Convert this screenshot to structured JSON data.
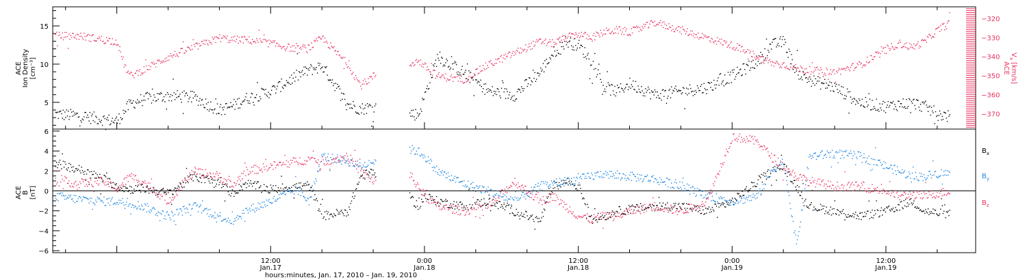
{
  "colors": {
    "black": "#000000",
    "pink": "#e8325f",
    "blue": "#1f86e0"
  },
  "chart_data": [
    {
      "type": "scatter",
      "title": "",
      "ylabel_left": [
        "ACE",
        "Ion Density",
        "[cm⁻³]"
      ],
      "ylabel_right": [
        "ACE",
        "V",
        "x",
        "[km/s]"
      ],
      "ylim_left": [
        1.5,
        17.5
      ],
      "ylim_right": [
        -378,
        -314
      ],
      "yticks_left": [
        5,
        10,
        15
      ],
      "yticks_right": [
        -370,
        -360,
        -350,
        -340,
        -330,
        -320
      ],
      "xlim_hours": [
        -5,
        67
      ],
      "grid": false,
      "series": [
        {
          "axis": "left",
          "color": "#000000",
          "x": [
            -4.8,
            -3.0,
            -1.0,
            0.0,
            0.6,
            1.0,
            2.0,
            4.0,
            6.0,
            8.0,
            9.0,
            10.0,
            12.0,
            14.0,
            15.0,
            16.0,
            18.0,
            19.0,
            20.0,
            22.0,
            23.5,
            24.0,
            25.0,
            27.0,
            29.0,
            31.0,
            33.0,
            34.0,
            35.0,
            36.0,
            37.0,
            38.0,
            39.0,
            40.0,
            42.0,
            44.0,
            46.0,
            48.0,
            50.0,
            51.0,
            52.0,
            53.0,
            54.0,
            56.0,
            58.0,
            60.0,
            61.0,
            62.0,
            63.0,
            64.0,
            65.0
          ],
          "y": [
            3.5,
            3.3,
            2.8,
            2.6,
            4.0,
            4.8,
            5.5,
            5.9,
            5.7,
            4.0,
            4.6,
            5.5,
            6.5,
            8.5,
            9.3,
            9.8,
            4.8,
            4.2,
            4.5,
            4.0,
            3.4,
            6.0,
            11.0,
            9.0,
            6.5,
            6.0,
            9.0,
            11.5,
            13.0,
            12.5,
            10.5,
            7.0,
            6.5,
            7.5,
            6.0,
            6.5,
            7.0,
            8.5,
            10.5,
            12.5,
            13.0,
            9.0,
            8.0,
            7.0,
            5.0,
            4.5,
            4.8,
            5.0,
            4.5,
            3.5,
            3.2
          ]
        },
        {
          "axis": "right",
          "color": "#e8325f",
          "x": [
            -4.8,
            -3.0,
            -1.0,
            0.0,
            0.6,
            1.0,
            2.0,
            4.0,
            6.0,
            8.0,
            9.0,
            10.0,
            12.0,
            14.0,
            15.0,
            16.0,
            18.0,
            19.0,
            20.0,
            22.0,
            23.5,
            24.0,
            25.0,
            27.0,
            29.0,
            31.0,
            33.0,
            34.0,
            35.0,
            36.0,
            37.0,
            38.0,
            39.0,
            40.0,
            42.0,
            44.0,
            46.0,
            48.0,
            50.0,
            51.0,
            52.0,
            53.0,
            54.0,
            56.0,
            58.0,
            60.0,
            61.0,
            62.0,
            63.0,
            64.0,
            65.0
          ],
          "y": [
            -329,
            -329,
            -331,
            -332,
            -345,
            -350,
            -347,
            -340,
            -335,
            -330,
            -331,
            -331,
            -333,
            -336,
            -335,
            -330,
            -344,
            -355,
            -350,
            -346,
            -342,
            -345,
            -350,
            -352,
            -344,
            -338,
            -332,
            -333,
            -330,
            -328,
            -330,
            -327,
            -326,
            -327,
            -322,
            -326,
            -330,
            -334,
            -340,
            -343,
            -344,
            -346,
            -347,
            -348,
            -344,
            -336,
            -333,
            -335,
            -332,
            -326,
            -322
          ]
        }
      ]
    },
    {
      "type": "scatter",
      "title": "",
      "ylabel_left": [
        "ACE",
        "B",
        "[nT]"
      ],
      "ylim": [
        -6.2,
        6.2
      ],
      "yticks": [
        -6,
        -4,
        -2,
        0,
        2,
        4,
        6
      ],
      "xlim_hours": [
        -5,
        67
      ],
      "zero_line": true,
      "grid": false,
      "legend_position": "right",
      "legend": [
        {
          "label": "B",
          "sub": "x",
          "color": "#000000"
        },
        {
          "label": "B",
          "sub": "y",
          "color": "#1f86e0"
        },
        {
          "label": "B",
          "sub": "z",
          "color": "#e8325f"
        }
      ],
      "series": [
        {
          "name": "Bx",
          "color": "#000000",
          "x": [
            -4.8,
            -3.0,
            -1.0,
            0.0,
            1.0,
            2.0,
            4.0,
            6.0,
            8.0,
            9.0,
            10.0,
            12.0,
            14.0,
            15.0,
            16.0,
            18.0,
            19.0,
            20.0,
            22.0,
            23.5,
            24.0,
            25.0,
            27.0,
            29.0,
            31.0,
            33.0,
            34.0,
            35.0,
            36.0,
            37.0,
            38.0,
            39.0,
            40.0,
            42.0,
            44.0,
            46.0,
            48.0,
            50.0,
            51.0,
            52.0,
            53.0,
            54.0,
            56.0,
            58.0,
            60.0,
            61.0,
            62.0,
            63.0,
            64.0,
            65.0
          ],
          "y": [
            2.8,
            2.2,
            1.2,
            0.5,
            0.2,
            0.3,
            -0.2,
            1.5,
            0.8,
            -0.2,
            0.8,
            0.2,
            0.5,
            0.6,
            -2.5,
            -2.0,
            1.5,
            2.0,
            0.5,
            -1.5,
            -0.5,
            -1.0,
            -1.5,
            -1.0,
            -2.0,
            -3.0,
            0.5,
            1.0,
            0.5,
            -2.8,
            -2.5,
            -2.0,
            -1.8,
            -1.5,
            -1.5,
            -2.0,
            -1.0,
            1.0,
            2.0,
            2.5,
            0.5,
            -1.5,
            -2.0,
            -2.5,
            -2.0,
            -1.5,
            -1.0,
            -2.0,
            -2.2,
            -2.3
          ]
        },
        {
          "name": "By",
          "color": "#1f86e0",
          "x": [
            -4.8,
            -3.0,
            -1.0,
            0.0,
            1.0,
            2.0,
            4.0,
            6.0,
            8.0,
            9.0,
            10.0,
            12.0,
            14.0,
            15.0,
            16.0,
            18.0,
            19.0,
            20.0,
            22.0,
            23.5,
            24.0,
            25.0,
            27.0,
            29.0,
            31.0,
            33.0,
            34.0,
            35.0,
            36.0,
            37.0,
            38.0,
            39.0,
            40.0,
            42.0,
            44.0,
            46.0,
            48.0,
            50.0,
            51.0,
            52.0,
            53.0,
            54.0,
            56.0,
            58.0,
            60.0,
            61.0,
            62.0,
            63.0,
            64.0,
            65.0
          ],
          "y": [
            -0.5,
            -0.8,
            -1.0,
            -1.0,
            -1.2,
            -1.5,
            -2.5,
            -1.5,
            -2.5,
            -3.0,
            -2.0,
            -1.0,
            0.2,
            -1.0,
            3.5,
            3.0,
            2.5,
            3.0,
            4.5,
            4.0,
            3.5,
            2.0,
            0.8,
            0.0,
            -1.0,
            0.5,
            0.8,
            1.0,
            1.2,
            1.5,
            1.8,
            1.5,
            1.5,
            1.2,
            0.5,
            -0.5,
            -1.0,
            -0.5,
            2.0,
            3.0,
            -5.5,
            3.5,
            3.8,
            3.5,
            2.5,
            2.0,
            1.5,
            1.5,
            1.8,
            1.8
          ]
        },
        {
          "name": "Bz",
          "color": "#e8325f",
          "x": [
            -4.8,
            -3.0,
            -1.0,
            0.0,
            1.0,
            2.0,
            4.0,
            6.0,
            8.0,
            9.0,
            10.0,
            12.0,
            14.0,
            15.0,
            16.0,
            18.0,
            19.0,
            20.0,
            22.0,
            23.5,
            24.0,
            25.0,
            27.0,
            29.0,
            31.0,
            33.0,
            34.0,
            35.0,
            36.0,
            37.0,
            38.0,
            39.0,
            40.0,
            42.0,
            44.0,
            46.0,
            48.0,
            50.0,
            51.0,
            52.0,
            53.0,
            54.0,
            56.0,
            58.0,
            60.0,
            61.0,
            62.0,
            63.0,
            64.0,
            65.0
          ],
          "y": [
            1.0,
            0.8,
            1.0,
            0.2,
            1.5,
            1.0,
            -1.0,
            2.0,
            1.5,
            0.5,
            2.0,
            2.5,
            3.0,
            3.2,
            3.0,
            3.5,
            2.0,
            1.0,
            3.0,
            0.5,
            -0.5,
            -1.5,
            -2.0,
            -1.5,
            1.0,
            -1.0,
            -0.5,
            -1.5,
            -2.5,
            -2.8,
            -2.5,
            -2.5,
            -2.0,
            -1.5,
            -2.0,
            -1.0,
            5.5,
            5.0,
            3.5,
            2.5,
            1.5,
            1.0,
            0.5,
            0.5,
            0.0,
            -0.5,
            -0.3,
            -0.5,
            -0.2,
            0.0
          ]
        }
      ]
    }
  ],
  "x_axis": {
    "tick_labels": [
      {
        "hour": 12,
        "time": "12:00",
        "date": "Jan.17"
      },
      {
        "hour": 24,
        "time": "0:00",
        "date": "Jan.18"
      },
      {
        "hour": 36,
        "time": "12:00",
        "date": "Jan.18"
      },
      {
        "hour": 48,
        "time": "0:00",
        "date": "Jan.19"
      },
      {
        "hour": 60,
        "time": "12:00",
        "date": "Jan.19"
      }
    ],
    "label": "hours:minutes, Jan. 17, 2010 – Jan. 19, 2010"
  }
}
